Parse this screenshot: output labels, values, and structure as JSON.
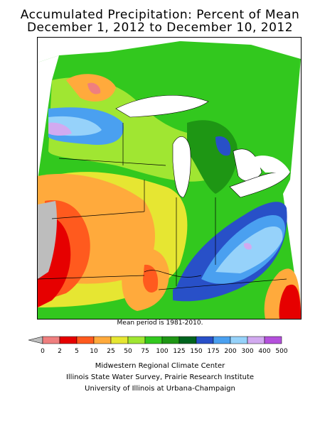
{
  "title": {
    "line1": "Accumulated Precipitation: Percent of Mean",
    "line2": "December 1, 2012 to December 10, 2012"
  },
  "note": "Mean period is 1981-2010.",
  "legend": {
    "ticks": [
      "0",
      "2",
      "5",
      "10",
      "25",
      "50",
      "75",
      "100",
      "125",
      "150",
      "175",
      "200",
      "300",
      "400",
      "500"
    ],
    "colors": [
      "#bdbdbd",
      "#ef7f7f",
      "#e60000",
      "#ff5a1e",
      "#ffaa3c",
      "#e6e632",
      "#a0e632",
      "#32c81e",
      "#1e9614",
      "#00641e",
      "#2850c8",
      "#4aa0f0",
      "#96d2fa",
      "#d2aaf0",
      "#b450dc"
    ]
  },
  "credits": [
    "Midwestern Regional Climate Center",
    "Illinois State Water Survey, Prairie Research Institute",
    "University of Illinois at Urbana-Champaign"
  ]
}
